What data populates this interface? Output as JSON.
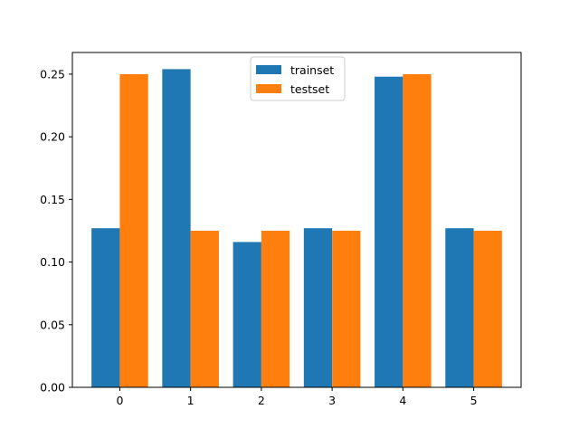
{
  "chart_data": {
    "type": "bar",
    "categories": [
      "0",
      "1",
      "2",
      "3",
      "4",
      "5"
    ],
    "series": [
      {
        "name": "trainset",
        "values": [
          0.127,
          0.254,
          0.116,
          0.127,
          0.248,
          0.127
        ],
        "color": "#1f77b4"
      },
      {
        "name": "testset",
        "values": [
          0.25,
          0.125,
          0.125,
          0.125,
          0.25,
          0.125
        ],
        "color": "#ff7f0e"
      }
    ],
    "yticks": [
      "0.00",
      "0.05",
      "0.10",
      "0.15",
      "0.20",
      "0.25"
    ],
    "ylim": [
      0,
      0.2673
    ],
    "grid": false,
    "legend_position": "top-center"
  }
}
